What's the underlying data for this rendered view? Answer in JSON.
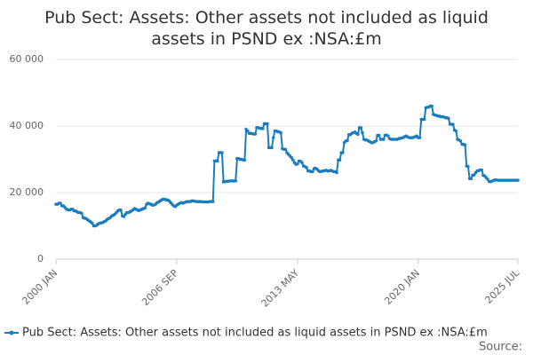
{
  "chart_data": {
    "type": "line",
    "title": "Pub Sect: Assets: Other assets not included as liquid assets in PSND ex :NSA:£m",
    "source": "Source:",
    "categories": [
      "2000 JAN",
      null,
      null,
      null,
      null,
      null,
      null,
      null,
      null,
      null,
      null,
      null,
      null,
      null,
      null,
      null,
      null,
      null,
      null,
      null,
      null,
      null,
      null,
      null,
      null,
      null,
      null,
      null,
      null,
      null,
      null,
      null,
      null,
      null,
      null,
      null,
      null,
      null,
      null,
      null,
      null,
      null,
      null,
      null,
      null,
      null,
      null,
      null,
      null,
      null,
      null,
      null,
      null,
      null,
      null,
      null,
      null,
      null,
      null,
      null,
      null,
      null,
      null,
      null,
      null,
      null,
      null,
      null,
      null,
      null,
      null,
      null,
      null,
      null,
      null,
      null,
      null,
      null,
      null,
      null,
      "2006 SEP",
      null,
      null,
      null,
      null,
      null,
      null,
      null,
      null,
      null,
      null,
      null,
      null,
      null,
      null,
      null,
      null,
      null,
      null,
      null,
      null,
      null,
      null,
      null,
      null,
      null,
      null,
      null,
      null,
      null,
      null,
      null,
      null,
      null,
      null,
      null,
      null,
      null,
      null,
      null,
      null,
      null,
      null,
      null,
      null,
      null,
      null,
      null,
      null,
      null,
      null,
      null,
      null,
      null,
      null,
      null,
      null,
      null,
      null,
      null,
      null,
      null,
      null,
      null,
      null,
      null,
      null,
      null,
      null,
      null,
      null,
      null,
      null,
      null,
      null,
      null,
      null,
      null,
      null,
      null,
      "2013 MAY",
      null,
      null,
      null,
      null,
      null,
      null,
      null,
      null,
      null,
      null,
      null,
      null,
      null,
      null,
      null,
      null,
      null,
      null,
      null,
      null,
      null,
      null,
      null,
      null,
      null,
      null,
      null,
      null,
      null,
      null,
      null,
      null,
      null,
      null,
      null,
      null,
      null,
      null,
      null,
      null,
      null,
      null,
      null,
      null,
      null,
      null,
      null,
      null,
      null,
      null,
      null,
      null,
      null,
      null,
      null,
      null,
      null,
      null,
      null,
      null,
      null,
      null,
      null,
      null,
      null,
      null,
      null,
      null,
      null,
      null,
      null,
      null,
      null,
      null,
      null,
      null,
      null,
      null,
      null,
      "2020 JAN",
      null,
      null,
      null,
      null,
      null,
      null,
      null,
      null,
      null,
      null,
      null,
      null,
      null,
      null,
      null,
      null,
      null,
      null,
      null,
      null,
      null,
      null,
      null,
      null,
      null,
      null,
      null,
      null,
      null,
      null,
      null,
      null,
      null,
      null,
      null,
      null,
      null,
      null,
      null,
      null,
      null,
      null,
      null,
      null,
      null,
      null,
      null,
      null,
      null,
      null,
      null,
      null,
      null,
      null,
      null,
      null,
      null,
      null,
      null,
      null,
      null,
      null,
      null,
      null,
      null,
      "2025 JUL"
    ],
    "series": [
      {
        "name": "Pub Sect: Assets: Other assets not included as liquid assets in PSND ex :NSA:£m",
        "color": "#1a7dbf",
        "values": [
          16500,
          16500,
          16800,
          16800,
          16000,
          16000,
          15500,
          15000,
          14800,
          14800,
          15000,
          15000,
          14500,
          14500,
          14200,
          14000,
          14000,
          13800,
          12500,
          12300,
          12200,
          11800,
          11500,
          11200,
          10800,
          10000,
          10000,
          10200,
          10600,
          10800,
          10900,
          11000,
          11300,
          11500,
          12000,
          12200,
          12500,
          13000,
          13200,
          13500,
          14000,
          14500,
          14800,
          14700,
          13000,
          12800,
          13500,
          14000,
          14000,
          14200,
          14500,
          14800,
          15200,
          15000,
          14800,
          14600,
          14800,
          15000,
          15200,
          15400,
          16500,
          16800,
          16600,
          16500,
          16200,
          16300,
          16500,
          17000,
          17200,
          17500,
          17800,
          18000,
          18000,
          17800,
          17800,
          17500,
          17000,
          16500,
          16000,
          15800,
          16200,
          16500,
          16800,
          17000,
          16800,
          17000,
          17200,
          17300,
          17300,
          17300,
          17500,
          17500,
          17400,
          17300,
          17300,
          17300,
          17300,
          17200,
          17200,
          17200,
          17200,
          17200,
          17300,
          17300,
          17300,
          29500,
          29500,
          29500,
          32000,
          32000,
          32000,
          23200,
          23300,
          23400,
          23400,
          23500,
          23500,
          23500,
          23500,
          23500,
          30200,
          30200,
          30000,
          30000,
          29800,
          29800,
          39000,
          38500,
          37800,
          37800,
          37700,
          37600,
          37600,
          39500,
          39500,
          39300,
          39300,
          39200,
          40700,
          40700,
          40700,
          33500,
          33500,
          33500,
          36500,
          38500,
          38500,
          38300,
          38200,
          38000,
          33200,
          33000,
          33000,
          32000,
          31500,
          31000,
          30500,
          29800,
          29000,
          28500,
          28600,
          29500,
          29400,
          29000,
          28000,
          27800,
          27500,
          26500,
          26500,
          26300,
          26300,
          27200,
          27300,
          27000,
          26500,
          26300,
          26400,
          26500,
          26600,
          26700,
          26500,
          26500,
          26700,
          26500,
          26300,
          26300,
          26000,
          29800,
          29800,
          32000,
          32000,
          35000,
          35500,
          35600,
          37400,
          37400,
          37800,
          38000,
          38200,
          37800,
          37500,
          39500,
          39500,
          38000,
          36000,
          35800,
          35800,
          35500,
          35300,
          35000,
          35000,
          35300,
          35500,
          37200,
          37200,
          36000,
          36000,
          36000,
          37200,
          37300,
          37000,
          36200,
          36000,
          36000,
          36000,
          36000,
          36000,
          36200,
          36300,
          36400,
          36500,
          36800,
          37000,
          36700,
          36500,
          36500,
          36500,
          36600,
          36800,
          37000,
          36500,
          36500,
          42000,
          42000,
          42000,
          45500,
          45600,
          45700,
          46000,
          46000,
          43500,
          43300,
          43200,
          43000,
          43000,
          42800,
          42800,
          42700,
          42500,
          42500,
          42300,
          40600,
          40500,
          40500,
          38800,
          38500,
          36000,
          35800,
          35500,
          34500,
          34500,
          34300,
          28000,
          27800,
          24200,
          24200,
          25200,
          25300,
          26000,
          26500,
          26600,
          26800,
          26800,
          25200,
          25000,
          24500,
          24000,
          23300,
          23300,
          23500,
          23700,
          23800,
          23800,
          23700,
          23700,
          23700,
          23700,
          23700,
          23700,
          23700,
          23700,
          23700,
          23700,
          23700,
          23700,
          23700,
          23700
        ]
      }
    ],
    "ylim": [
      0,
      60000
    ],
    "yticks": [
      0,
      {
        "value": 20000,
        "label": "20 000"
      },
      {
        "value": 40000,
        "label": "40 000"
      },
      {
        "value": 60000,
        "label": "60 000"
      }
    ],
    "grid": true
  }
}
